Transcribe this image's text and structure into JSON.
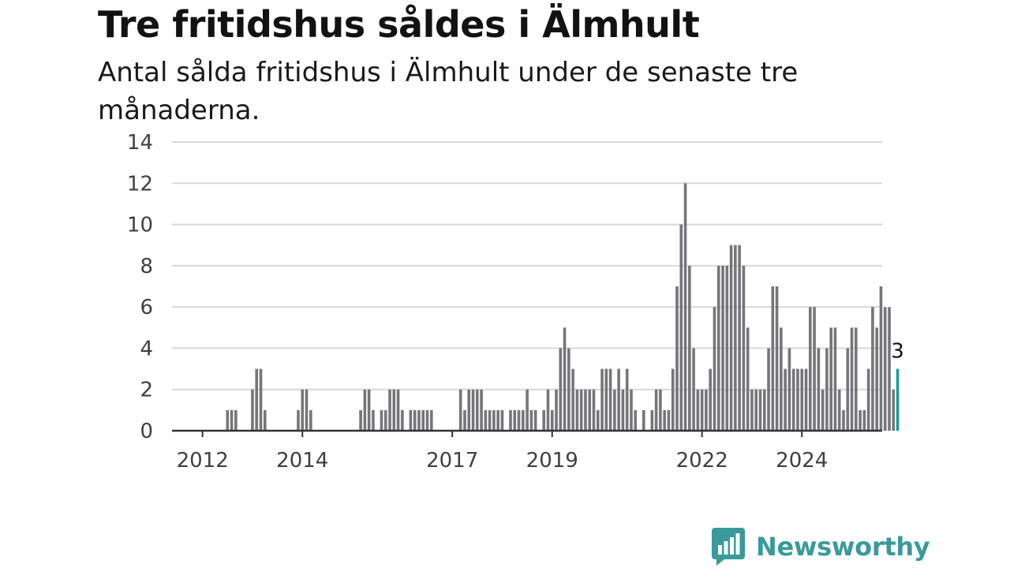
{
  "title": "Tre fritidshus såldes i Älmhult",
  "subtitle": "Antal sålda fritidshus i Älmhult under de senaste tre månaderna.",
  "brand": {
    "name": "Newsworthy",
    "icon": "bar-chart-speech-bubble-icon",
    "color": "#3a9a9a"
  },
  "colors": {
    "bar": "#75757a",
    "highlight": "#1a9c9a",
    "grid": "#d8d8d8",
    "axis": "#333333"
  },
  "chart_data": {
    "type": "bar",
    "frequency": "monthly",
    "start": "2011-07",
    "values": [
      0,
      0,
      0,
      0,
      0,
      0,
      0,
      0,
      0,
      0,
      0,
      0,
      1,
      1,
      1,
      0,
      0,
      0,
      2,
      3,
      3,
      1,
      0,
      0,
      0,
      0,
      0,
      0,
      0,
      1,
      2,
      2,
      1,
      0,
      0,
      0,
      0,
      0,
      0,
      0,
      0,
      0,
      0,
      0,
      1,
      2,
      2,
      1,
      0,
      1,
      1,
      2,
      2,
      2,
      1,
      0,
      1,
      1,
      1,
      1,
      1,
      1,
      0,
      0,
      0,
      0,
      0,
      0,
      2,
      1,
      2,
      2,
      2,
      2,
      1,
      1,
      1,
      1,
      1,
      0,
      1,
      1,
      1,
      1,
      2,
      1,
      1,
      0,
      1,
      2,
      1,
      2,
      4,
      5,
      4,
      3,
      2,
      2,
      2,
      2,
      2,
      1,
      3,
      3,
      3,
      2,
      3,
      2,
      3,
      2,
      1,
      0,
      1,
      0,
      1,
      2,
      2,
      1,
      1,
      3,
      7,
      10,
      12,
      8,
      4,
      2,
      2,
      2,
      3,
      6,
      8,
      8,
      8,
      9,
      9,
      9,
      8,
      5,
      2,
      2,
      2,
      2,
      4,
      7,
      7,
      5,
      3,
      4,
      3,
      3,
      3,
      3,
      6,
      6,
      4,
      2,
      4,
      5,
      5,
      2,
      1,
      4,
      5,
      5,
      1,
      1,
      3,
      6,
      5,
      7,
      6,
      6,
      2,
      3
    ],
    "highlight_last": true,
    "last_label": "3",
    "x_ticks": [
      {
        "label": "2012",
        "index": 6
      },
      {
        "label": "2014",
        "index": 30
      },
      {
        "label": "2017",
        "index": 66
      },
      {
        "label": "2019",
        "index": 90
      },
      {
        "label": "2022",
        "index": 126
      },
      {
        "label": "2024",
        "index": 150
      }
    ],
    "y_ticks": [
      0,
      2,
      4,
      6,
      8,
      10,
      12,
      14
    ],
    "ylim": [
      0,
      14
    ],
    "grid": true
  }
}
